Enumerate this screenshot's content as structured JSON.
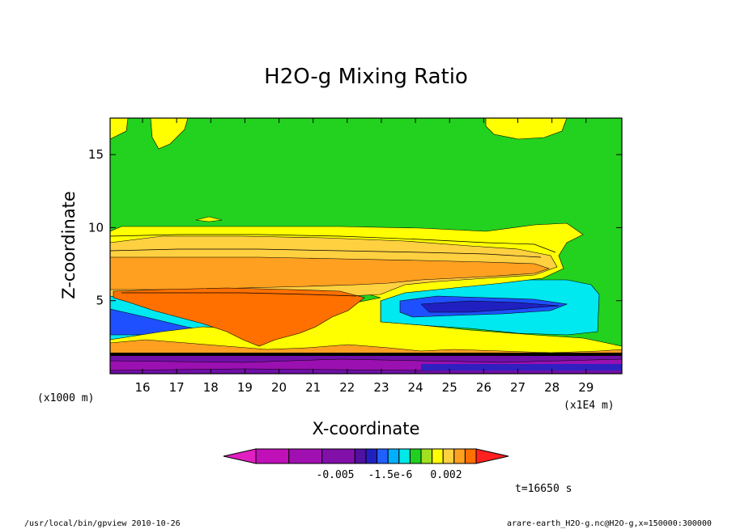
{
  "chart_data": {
    "type": "heatmap",
    "title": "H2O-g Mixing Ratio",
    "xlabel": "X-coordinate",
    "ylabel": "Z-coordinate",
    "x_unit": "(x1E4 m)",
    "y_unit": "(x1000 m)",
    "xlim": [
      15.05,
      30.05
    ],
    "ylim": [
      0,
      17.5
    ],
    "x_ticks": [
      "16",
      "17",
      "18",
      "19",
      "20",
      "21",
      "22",
      "23",
      "24",
      "25",
      "26",
      "27",
      "28",
      "29"
    ],
    "y_ticks": [
      "5",
      "10",
      "15"
    ],
    "colorbar_labels": [
      "-0.005",
      "-1.5e-6",
      "0.002"
    ],
    "colorbar_colors": [
      "#e020c0",
      "#c010b8",
      "#a010b0",
      "#8010a8",
      "#5010a0",
      "#2020c0",
      "#2060ff",
      "#00b0ff",
      "#00e8e8",
      "#20d020",
      "#a0e020",
      "#ffff00",
      "#ffd040",
      "#ffa020",
      "#ff7000",
      "#ff2020"
    ],
    "time_label": "t=16650 s",
    "footer_left": "/usr/local/bin/gpview  2010-10-26",
    "footer_right": "arare-earth_H2O-g.nc@H2O-g,x=150000:300000"
  }
}
